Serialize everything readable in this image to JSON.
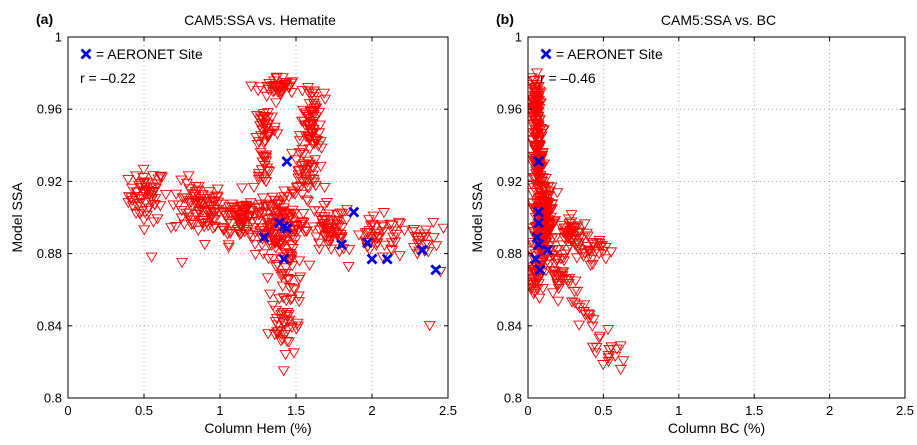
{
  "chart_data": [
    {
      "type": "scatter",
      "panel_label": "(a)",
      "title": "CAM5:SSA vs. Hematite",
      "xlabel": "Column Hem (%)",
      "ylabel": "Model SSA",
      "xlim": [
        0,
        2.5
      ],
      "ylim": [
        0.8,
        1.0
      ],
      "xticks": [
        "0",
        "0.5",
        "1",
        "1.5",
        "2",
        "2.5"
      ],
      "yticks": [
        "0.8",
        "0.84",
        "0.88",
        "0.92",
        "0.96",
        "1"
      ],
      "grid": true,
      "legend_label": "= AERONET Site",
      "annotation": "r = –0.22",
      "series": [
        {
          "kind": "model",
          "color": "#ff0000",
          "marker": "triangle-down",
          "cloud": [
            [
              0.52,
              0.912,
              0.1,
              0.012,
              60
            ],
            [
              0.85,
              0.905,
              0.15,
              0.012,
              80
            ],
            [
              1.15,
              0.9,
              0.15,
              0.012,
              90
            ],
            [
              1.4,
              0.895,
              0.14,
              0.014,
              120
            ],
            [
              1.72,
              0.893,
              0.12,
              0.012,
              60
            ],
            [
              2.05,
              0.888,
              0.15,
              0.01,
              45
            ],
            [
              2.35,
              0.888,
              0.08,
              0.008,
              20
            ],
            [
              1.45,
              0.86,
              0.09,
              0.02,
              50
            ],
            [
              1.4,
              0.835,
              0.06,
              0.01,
              18
            ],
            [
              1.55,
              0.925,
              0.08,
              0.012,
              40
            ],
            [
              1.6,
              0.945,
              0.06,
              0.012,
              40
            ],
            [
              1.3,
              0.95,
              0.06,
              0.01,
              35
            ],
            [
              1.38,
              0.972,
              0.1,
              0.005,
              40
            ],
            [
              1.62,
              0.965,
              0.05,
              0.008,
              25
            ],
            [
              1.28,
              0.928,
              0.04,
              0.01,
              20
            ]
          ],
          "extra": [
            [
              0.55,
              0.878
            ],
            [
              2.45,
              0.87
            ],
            [
              2.38,
              0.84
            ],
            [
              2.47,
              0.894
            ],
            [
              0.75,
              0.875
            ],
            [
              0.9,
              0.885
            ]
          ]
        },
        {
          "kind": "aeronet",
          "color": "#0000dd",
          "marker": "x",
          "points": [
            [
              1.29,
              0.889
            ],
            [
              1.39,
              0.897
            ],
            [
              1.42,
              0.895
            ],
            [
              1.44,
              0.894
            ],
            [
              1.44,
              0.931
            ],
            [
              1.42,
              0.877
            ],
            [
              1.8,
              0.885
            ],
            [
              1.88,
              0.903
            ],
            [
              1.97,
              0.886
            ],
            [
              2.0,
              0.877
            ],
            [
              2.1,
              0.877
            ],
            [
              2.33,
              0.882
            ],
            [
              2.42,
              0.871
            ]
          ]
        }
      ]
    },
    {
      "type": "scatter",
      "panel_label": "(b)",
      "title": "CAM5:SSA vs. BC",
      "xlabel": "Column BC (%)",
      "ylabel": "Model SSA",
      "xlim": [
        0,
        2.5
      ],
      "ylim": [
        0.8,
        1.0
      ],
      "xticks": [
        "0",
        "0.5",
        "1",
        "1.5",
        "2",
        "2.5"
      ],
      "yticks": [
        "0.8",
        "0.84",
        "0.88",
        "0.92",
        "0.96",
        "1"
      ],
      "grid": true,
      "legend_label": "= AERONET Site",
      "annotation": "r = –0.46",
      "series": [
        {
          "kind": "model",
          "color": "#ff0000",
          "marker": "triangle-down",
          "cloud": [
            [
              0.05,
              0.96,
              0.025,
              0.015,
              90
            ],
            [
              0.07,
              0.93,
              0.035,
              0.015,
              90
            ],
            [
              0.1,
              0.905,
              0.06,
              0.012,
              110
            ],
            [
              0.1,
              0.885,
              0.06,
              0.012,
              80
            ],
            [
              0.3,
              0.89,
              0.08,
              0.008,
              50
            ],
            [
              0.42,
              0.882,
              0.08,
              0.006,
              25
            ],
            [
              0.05,
              0.865,
              0.03,
              0.01,
              30
            ],
            [
              0.2,
              0.865,
              0.05,
              0.008,
              20
            ]
          ],
          "segments": [
            [
              0.15,
              0.88,
              0.6,
              0.818,
              45
            ]
          ]
        },
        {
          "kind": "aeronet",
          "color": "#0000dd",
          "marker": "x",
          "points": [
            [
              0.07,
              0.931
            ],
            [
              0.07,
              0.903
            ],
            [
              0.07,
              0.897
            ],
            [
              0.06,
              0.889
            ],
            [
              0.07,
              0.885
            ],
            [
              0.05,
              0.877
            ],
            [
              0.13,
              0.882
            ],
            [
              0.08,
              0.871
            ]
          ]
        }
      ]
    }
  ]
}
